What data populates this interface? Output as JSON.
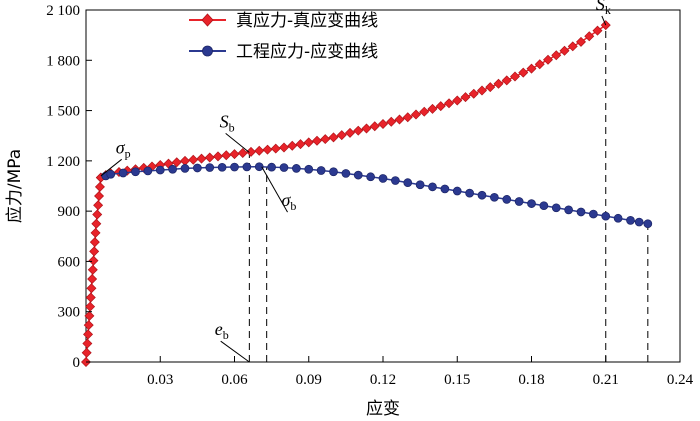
{
  "chart_data": {
    "type": "line",
    "xlabel": "应变",
    "ylabel": "应力/MPa",
    "xlim": [
      0,
      0.24
    ],
    "ylim": [
      0,
      2100
    ],
    "x_ticks": [
      {
        "v": 0.03,
        "label": "0.03"
      },
      {
        "v": 0.06,
        "label": "0.06"
      },
      {
        "v": 0.09,
        "label": "0.09"
      },
      {
        "v": 0.12,
        "label": "0.12"
      },
      {
        "v": 0.15,
        "label": "0.15"
      },
      {
        "v": 0.18,
        "label": "0.18"
      },
      {
        "v": 0.21,
        "label": "0.21"
      },
      {
        "v": 0.24,
        "label": "0.24"
      }
    ],
    "y_ticks": [
      {
        "v": 0,
        "label": "0"
      },
      {
        "v": 300,
        "label": "300"
      },
      {
        "v": 600,
        "label": "600"
      },
      {
        "v": 900,
        "label": "900"
      },
      {
        "v": 1200,
        "label": "1 200"
      },
      {
        "v": 1500,
        "label": "1 500"
      },
      {
        "v": 1800,
        "label": "1 800"
      },
      {
        "v": 2100,
        "label": "2 100"
      }
    ],
    "legend_position": "top-center",
    "series": [
      {
        "name": "真应力-真应变曲线",
        "color": "#e8232a",
        "marker": "diamond",
        "x": [
          0.0,
          0.002,
          0.004,
          0.006,
          0.008,
          0.01,
          0.02,
          0.03,
          0.04,
          0.05,
          0.06,
          0.07,
          0.08,
          0.09,
          0.1,
          0.11,
          0.12,
          0.13,
          0.14,
          0.15,
          0.16,
          0.17,
          0.18,
          0.19,
          0.2,
          0.21
        ],
        "y": [
          0,
          400,
          800,
          1100,
          1115,
          1125,
          1150,
          1175,
          1200,
          1220,
          1240,
          1260,
          1280,
          1310,
          1340,
          1380,
          1420,
          1460,
          1510,
          1560,
          1620,
          1680,
          1750,
          1830,
          1910,
          2010
        ]
      },
      {
        "name": "工程应力-应变曲线",
        "color": "#2b3990",
        "marker": "circle",
        "x": [
          0.008,
          0.01,
          0.02,
          0.03,
          0.04,
          0.05,
          0.06,
          0.07,
          0.08,
          0.09,
          0.1,
          0.11,
          0.12,
          0.13,
          0.14,
          0.15,
          0.16,
          0.17,
          0.18,
          0.19,
          0.2,
          0.21,
          0.22,
          0.227
        ],
        "y": [
          1110,
          1120,
          1135,
          1145,
          1155,
          1160,
          1163,
          1165,
          1160,
          1150,
          1135,
          1115,
          1095,
          1070,
          1045,
          1020,
          995,
          970,
          945,
          920,
          895,
          870,
          845,
          825
        ]
      }
    ],
    "annotations": [
      {
        "id": "sigma-p",
        "main": "σ",
        "sub": "p",
        "x": 0.012,
        "y": 1245,
        "line_to": [
          0.006,
          1110
        ]
      },
      {
        "id": "S-b",
        "main": "S",
        "sub": "b",
        "x": 0.054,
        "y": 1400,
        "line_to": [
          0.066,
          1250
        ]
      },
      {
        "id": "sigma-b",
        "main": "σ",
        "sub": "b",
        "x": 0.079,
        "y": 930,
        "line_to": [
          0.071,
          1165
        ]
      },
      {
        "id": "S-k",
        "main": "S",
        "sub": "k",
        "x": 0.206,
        "y": 2100,
        "line_to": [
          0.21,
          2010
        ]
      },
      {
        "id": "e-b",
        "main": "e",
        "sub": "b",
        "x": 0.052,
        "y": 160,
        "line_to": [
          0.066,
          0
        ]
      }
    ],
    "dashed_lines": [
      {
        "x": 0.066,
        "y_from": 0,
        "y_to": 1240
      },
      {
        "x": 0.073,
        "y_from": 0,
        "y_to": 1165
      },
      {
        "x": 0.21,
        "y_from": 0,
        "y_to": 2010
      },
      {
        "x": 0.227,
        "y_from": 0,
        "y_to": 825
      }
    ]
  }
}
